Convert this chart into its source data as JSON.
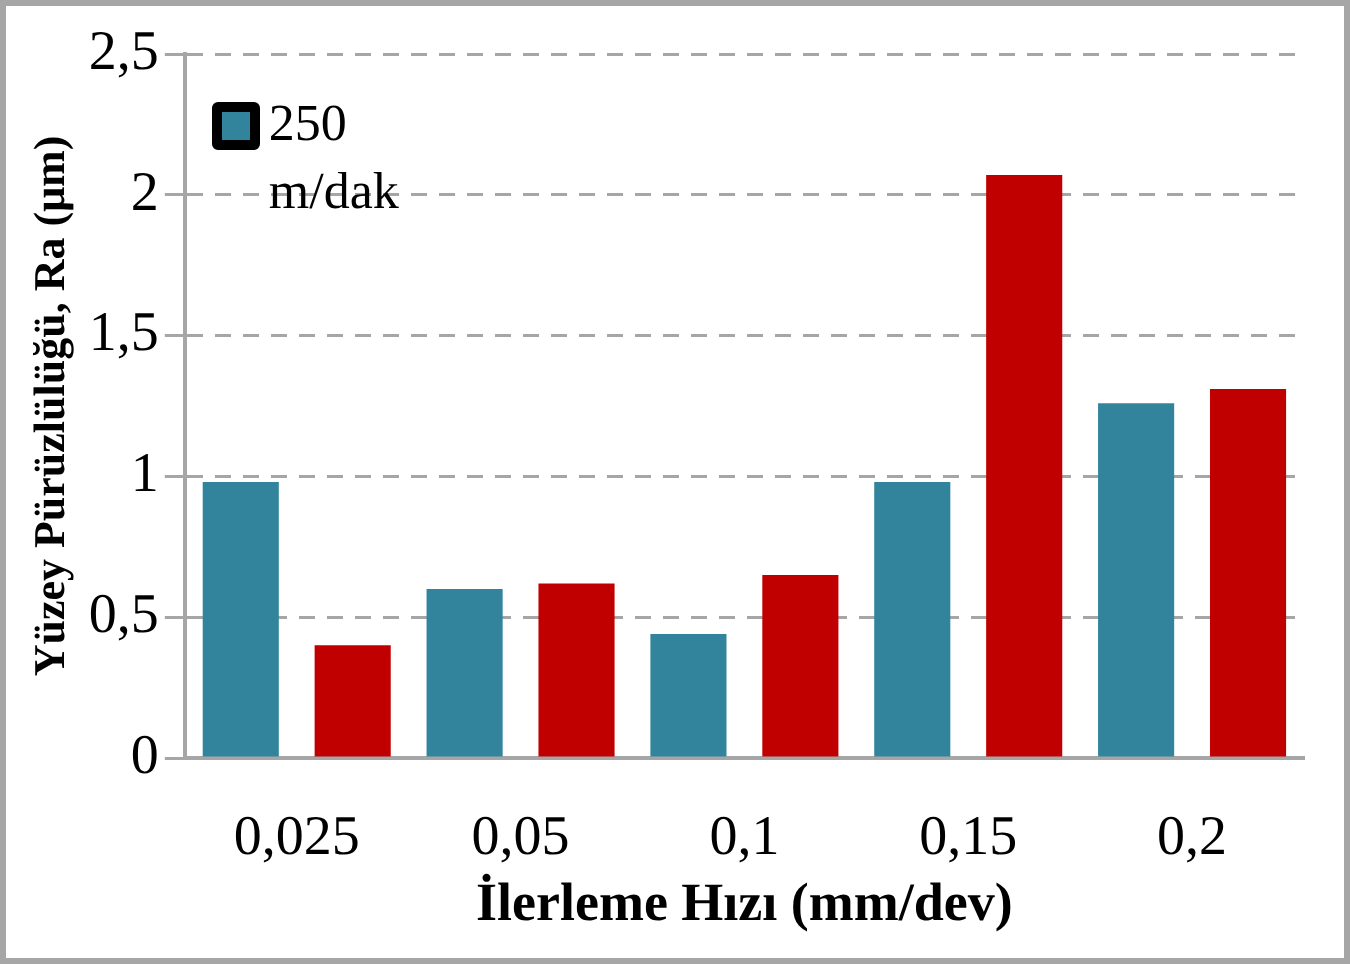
{
  "chart_data": {
    "type": "bar",
    "xlabel": "İlerleme Hızı (mm/dev)",
    "ylabel": "Yüzey Pürüzlülüğü, Ra (μm)",
    "categories": [
      "0,025",
      "0,05",
      "0,1",
      "0,15",
      "0,2"
    ],
    "series": [
      {
        "name": "250 m/dak",
        "color": "#31849b",
        "values": [
          0.98,
          0.6,
          0.44,
          0.98,
          1.26
        ]
      },
      {
        "color": "#c00000",
        "values": [
          0.4,
          0.62,
          0.65,
          2.07,
          1.31
        ]
      }
    ],
    "ylim": [
      0,
      2.5
    ],
    "yticks": [
      {
        "value": 0,
        "label": "0"
      },
      {
        "value": 0.5,
        "label": "0,5"
      },
      {
        "value": 1,
        "label": "1"
      },
      {
        "value": 1.5,
        "label": "1,5"
      },
      {
        "value": 2,
        "label": "2"
      },
      {
        "value": 2.5,
        "label": "2,5"
      }
    ],
    "grid": "y",
    "legend": "top left"
  }
}
